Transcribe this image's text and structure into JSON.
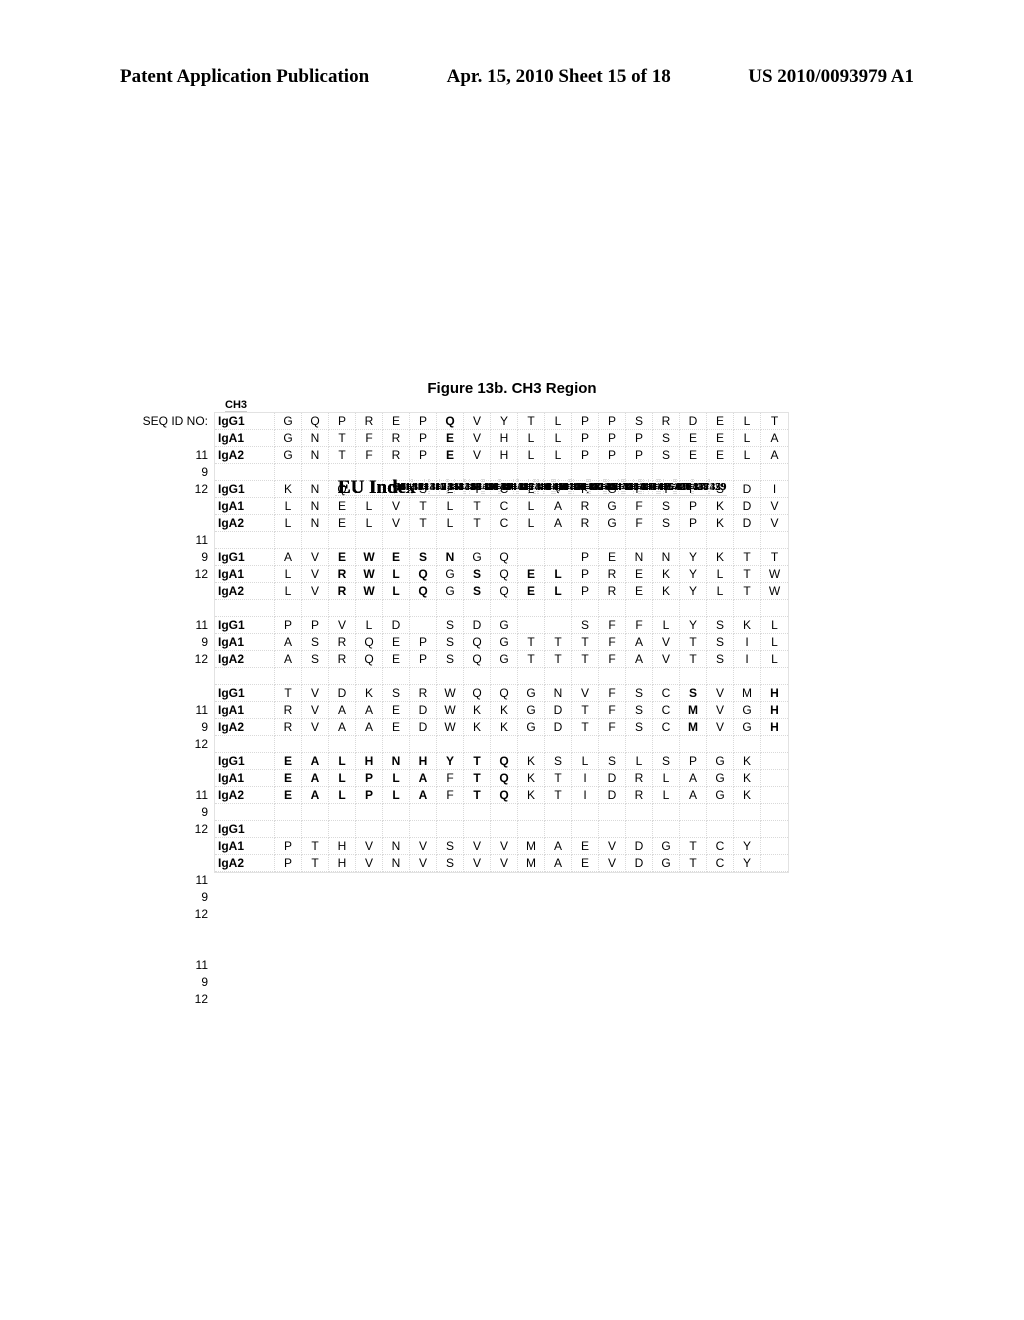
{
  "header": {
    "left": "Patent Application Publication",
    "center": "Apr. 15, 2010  Sheet 15 of 18",
    "right": "US 2010/0093979 A1"
  },
  "figure_title": "Figure 13b.  CH3 Region",
  "seq_label": "SEQ ID NO:",
  "region_label": "CH3",
  "blocks": [
    {
      "seq_ids": [
        "11",
        "9",
        "12"
      ],
      "index_label": "EU Index",
      "indices": [
        "341",
        "342",
        "343",
        "344",
        "345",
        "346",
        "347",
        "348",
        "349",
        "350",
        "351",
        "352",
        "353",
        "354",
        "355",
        "356",
        "357",
        "358",
        "359"
      ],
      "rows": [
        {
          "label": "IgG1",
          "b": false,
          "cells": [
            "G",
            "Q",
            "P",
            "R",
            "E",
            "P",
            "Q",
            "V",
            "Y",
            "T",
            "L",
            "P",
            "P",
            "S",
            "R",
            "D",
            "E",
            "L",
            "T"
          ],
          "bold": [
            0,
            0,
            0,
            0,
            0,
            0,
            1,
            0,
            0,
            0,
            0,
            0,
            0,
            0,
            0,
            0,
            0,
            0,
            0
          ]
        },
        {
          "label": "IgA1",
          "b": false,
          "cells": [
            "G",
            "N",
            "T",
            "F",
            "R",
            "P",
            "E",
            "V",
            "H",
            "L",
            "L",
            "P",
            "P",
            "P",
            "S",
            "E",
            "E",
            "L",
            "A"
          ],
          "bold": [
            0,
            0,
            0,
            0,
            0,
            0,
            1,
            0,
            0,
            0,
            0,
            0,
            0,
            0,
            0,
            0,
            0,
            0,
            0
          ]
        },
        {
          "label": "IgA2",
          "b": false,
          "cells": [
            "G",
            "N",
            "T",
            "F",
            "R",
            "P",
            "E",
            "V",
            "H",
            "L",
            "L",
            "P",
            "P",
            "P",
            "S",
            "E",
            "E",
            "L",
            "A"
          ],
          "bold": [
            0,
            0,
            0,
            0,
            0,
            0,
            1,
            0,
            0,
            0,
            0,
            0,
            0,
            0,
            0,
            0,
            0,
            0,
            0
          ]
        }
      ]
    },
    {
      "seq_ids": [
        "11",
        "9",
        "12"
      ],
      "index_label": "EU Index",
      "indices": [
        "360",
        "361",
        "362",
        "",
        "363",
        "364",
        "365",
        "366",
        "367",
        "368",
        "369",
        "370",
        "371",
        "372",
        "373",
        "374",
        "375",
        "376",
        "377"
      ],
      "rows": [
        {
          "label": "IgG1",
          "b": false,
          "cells": [
            "K",
            "N",
            "Q",
            "",
            "V",
            "S",
            "L",
            "T",
            "C",
            "L",
            "V",
            "K",
            "G",
            "F",
            "Y",
            "P",
            "S",
            "D",
            "I"
          ],
          "bold": [
            0,
            0,
            0,
            0,
            0,
            0,
            0,
            0,
            0,
            0,
            0,
            0,
            0,
            0,
            0,
            0,
            0,
            0,
            0
          ]
        },
        {
          "label": "IgA1",
          "b": false,
          "cells": [
            "L",
            "N",
            "E",
            "L",
            "V",
            "T",
            "L",
            "T",
            "C",
            "L",
            "A",
            "R",
            "G",
            "F",
            "S",
            "P",
            "K",
            "D",
            "V"
          ],
          "bold": [
            0,
            0,
            0,
            0,
            0,
            0,
            0,
            0,
            0,
            0,
            0,
            0,
            0,
            0,
            0,
            0,
            0,
            0,
            0
          ]
        },
        {
          "label": "IgA2",
          "b": false,
          "cells": [
            "L",
            "N",
            "E",
            "L",
            "V",
            "T",
            "L",
            "T",
            "C",
            "L",
            "A",
            "R",
            "G",
            "F",
            "S",
            "P",
            "K",
            "D",
            "V"
          ],
          "bold": [
            0,
            0,
            0,
            0,
            0,
            0,
            0,
            0,
            0,
            0,
            0,
            0,
            0,
            0,
            0,
            0,
            0,
            0,
            0
          ]
        }
      ]
    },
    {
      "seq_ids": [
        "11",
        "9",
        "12"
      ],
      "index_label": "EU Index",
      "indices": [
        "378",
        "379",
        "380",
        "381",
        "382",
        "383",
        "384",
        "385",
        "386",
        "",
        "",
        "387",
        "388",
        "389",
        "390",
        "391",
        "392",
        "393",
        "394"
      ],
      "rows": [
        {
          "label": "IgG1",
          "b": false,
          "cells": [
            "A",
            "V",
            "E",
            "W",
            "E",
            "S",
            "N",
            "G",
            "Q",
            "",
            "",
            "P",
            "E",
            "N",
            "N",
            "Y",
            "K",
            "T",
            "T"
          ],
          "bold": [
            0,
            0,
            1,
            1,
            1,
            1,
            1,
            0,
            0,
            0,
            0,
            0,
            0,
            0,
            0,
            0,
            0,
            0,
            0
          ]
        },
        {
          "label": "IgA1",
          "b": false,
          "cells": [
            "L",
            "V",
            "R",
            "W",
            "L",
            "Q",
            "G",
            "S",
            "Q",
            "E",
            "L",
            "P",
            "R",
            "E",
            "K",
            "Y",
            "L",
            "T",
            "W"
          ],
          "bold": [
            0,
            0,
            1,
            1,
            1,
            1,
            0,
            1,
            0,
            1,
            1,
            0,
            0,
            0,
            0,
            0,
            0,
            0,
            0
          ]
        },
        {
          "label": "IgA2",
          "b": false,
          "cells": [
            "L",
            "V",
            "R",
            "W",
            "L",
            "Q",
            "G",
            "S",
            "Q",
            "E",
            "L",
            "P",
            "R",
            "E",
            "K",
            "Y",
            "L",
            "T",
            "W"
          ],
          "bold": [
            0,
            0,
            1,
            1,
            1,
            1,
            0,
            1,
            0,
            1,
            1,
            0,
            0,
            0,
            0,
            0,
            0,
            0,
            0
          ]
        }
      ]
    },
    {
      "seq_ids": [
        "11",
        "9",
        "12"
      ],
      "index_label": "EU Index",
      "indices": [
        "395",
        "396",
        "397",
        "398",
        "399",
        "",
        "400",
        "401",
        "402",
        "",
        "",
        "403",
        "404",
        "405",
        "406",
        "407",
        "408",
        "409",
        "410"
      ],
      "rows": [
        {
          "label": "IgG1",
          "b": false,
          "cells": [
            "P",
            "P",
            "V",
            "L",
            "D",
            "",
            "S",
            "D",
            "G",
            "",
            "",
            "S",
            "F",
            "F",
            "L",
            "Y",
            "S",
            "K",
            "L"
          ],
          "bold": [
            0,
            0,
            0,
            0,
            0,
            0,
            0,
            0,
            0,
            0,
            0,
            0,
            0,
            0,
            0,
            0,
            0,
            0,
            0
          ]
        },
        {
          "label": "IgA1",
          "b": false,
          "cells": [
            "A",
            "S",
            "R",
            "Q",
            "E",
            "P",
            "S",
            "Q",
            "G",
            "T",
            "T",
            "T",
            "F",
            "A",
            "V",
            "T",
            "S",
            "I",
            "L"
          ],
          "bold": [
            0,
            0,
            0,
            0,
            0,
            0,
            0,
            0,
            0,
            0,
            0,
            0,
            0,
            0,
            0,
            0,
            0,
            0,
            0
          ]
        },
        {
          "label": "IgA2",
          "b": false,
          "cells": [
            "A",
            "S",
            "R",
            "Q",
            "E",
            "P",
            "S",
            "Q",
            "G",
            "T",
            "T",
            "T",
            "F",
            "A",
            "V",
            "T",
            "S",
            "I",
            "L"
          ],
          "bold": [
            0,
            0,
            0,
            0,
            0,
            0,
            0,
            0,
            0,
            0,
            0,
            0,
            0,
            0,
            0,
            0,
            0,
            0,
            0
          ]
        }
      ]
    },
    {
      "seq_ids": [
        "11",
        "9",
        "12"
      ],
      "index_label": "EU Index",
      "indices": [
        "411",
        "412",
        "413",
        "414",
        "415",
        "416",
        "417",
        "418",
        "419",
        "420",
        "421",
        "422",
        "423",
        "424",
        "425",
        "426",
        "427",
        "428",
        "429"
      ],
      "rows": [
        {
          "label": "IgG1",
          "b": false,
          "cells": [
            "T",
            "V",
            "D",
            "K",
            "S",
            "R",
            "W",
            "Q",
            "Q",
            "G",
            "N",
            "V",
            "F",
            "S",
            "C",
            "S",
            "V",
            "M",
            "H"
          ],
          "bold": [
            0,
            0,
            0,
            0,
            0,
            0,
            0,
            0,
            0,
            0,
            0,
            0,
            0,
            0,
            0,
            1,
            0,
            0,
            1
          ]
        },
        {
          "label": "IgA1",
          "b": false,
          "cells": [
            "R",
            "V",
            "A",
            "A",
            "E",
            "D",
            "W",
            "K",
            "K",
            "G",
            "D",
            "T",
            "F",
            "S",
            "C",
            "M",
            "V",
            "G",
            "H"
          ],
          "bold": [
            0,
            0,
            0,
            0,
            0,
            0,
            0,
            0,
            0,
            0,
            0,
            0,
            0,
            0,
            0,
            1,
            0,
            0,
            1
          ]
        },
        {
          "label": "IgA2",
          "b": false,
          "cells": [
            "R",
            "V",
            "A",
            "A",
            "E",
            "D",
            "W",
            "K",
            "K",
            "G",
            "D",
            "T",
            "F",
            "S",
            "C",
            "M",
            "V",
            "G",
            "H"
          ],
          "bold": [
            0,
            0,
            0,
            0,
            0,
            0,
            0,
            0,
            0,
            0,
            0,
            0,
            0,
            0,
            0,
            1,
            0,
            0,
            1
          ]
        }
      ]
    },
    {
      "seq_ids": [
        "11",
        "9",
        "12"
      ],
      "index_label": "EU Index",
      "indices": [
        "430",
        "431",
        "432",
        "433",
        "434",
        "435",
        "436",
        "437",
        "438",
        "439",
        "440",
        "441",
        "442",
        "443",
        "444",
        "445",
        "446",
        "447",
        ""
      ],
      "rows": [
        {
          "label": "IgG1",
          "b": false,
          "cells": [
            "E",
            "A",
            "L",
            "H",
            "N",
            "H",
            "Y",
            "T",
            "Q",
            "K",
            "S",
            "L",
            "S",
            "L",
            "S",
            "P",
            "G",
            "K",
            ""
          ],
          "bold": [
            1,
            1,
            1,
            1,
            1,
            1,
            1,
            1,
            1,
            0,
            0,
            0,
            0,
            0,
            0,
            0,
            0,
            0,
            0
          ]
        },
        {
          "label": "IgA1",
          "b": false,
          "cells": [
            "E",
            "A",
            "L",
            "P",
            "L",
            "A",
            "F",
            "T",
            "Q",
            "K",
            "T",
            "I",
            "D",
            "R",
            "L",
            "A",
            "G",
            "K",
            ""
          ],
          "bold": [
            1,
            1,
            1,
            1,
            1,
            1,
            0,
            1,
            1,
            0,
            0,
            0,
            0,
            0,
            0,
            0,
            0,
            0,
            0
          ]
        },
        {
          "label": "IgA2",
          "b": false,
          "cells": [
            "E",
            "A",
            "L",
            "P",
            "L",
            "A",
            "F",
            "T",
            "Q",
            "K",
            "T",
            "I",
            "D",
            "R",
            "L",
            "A",
            "G",
            "K",
            ""
          ],
          "bold": [
            1,
            1,
            1,
            1,
            1,
            1,
            0,
            1,
            1,
            0,
            0,
            0,
            0,
            0,
            0,
            0,
            0,
            0,
            0
          ]
        }
      ]
    },
    {
      "seq_ids": [
        "11",
        "9",
        "12"
      ],
      "index_label": "EU Index",
      "indices": [
        "",
        "",
        "",
        "",
        "",
        "",
        "",
        "",
        "",
        "",
        "",
        "",
        "",
        "",
        "",
        "",
        "",
        "",
        ""
      ],
      "rows": [
        {
          "label": "IgG1",
          "b": false,
          "cells": [
            "",
            "",
            "",
            "",
            "",
            "",
            "",
            "",
            "",
            "",
            "",
            "",
            "",
            "",
            "",
            "",
            "",
            "",
            ""
          ],
          "bold": [
            0,
            0,
            0,
            0,
            0,
            0,
            0,
            0,
            0,
            0,
            0,
            0,
            0,
            0,
            0,
            0,
            0,
            0,
            0
          ]
        },
        {
          "label": "IgA1",
          "b": false,
          "cells": [
            "P",
            "T",
            "H",
            "V",
            "N",
            "V",
            "S",
            "V",
            "V",
            "M",
            "A",
            "E",
            "V",
            "D",
            "G",
            "T",
            "C",
            "Y",
            ""
          ],
          "bold": [
            0,
            0,
            0,
            0,
            0,
            0,
            0,
            0,
            0,
            0,
            0,
            0,
            0,
            0,
            0,
            0,
            0,
            0,
            0
          ]
        },
        {
          "label": "IgA2",
          "b": false,
          "cells": [
            "P",
            "T",
            "H",
            "V",
            "N",
            "V",
            "S",
            "V",
            "V",
            "M",
            "A",
            "E",
            "V",
            "D",
            "G",
            "T",
            "C",
            "Y",
            ""
          ],
          "bold": [
            0,
            0,
            0,
            0,
            0,
            0,
            0,
            0,
            0,
            0,
            0,
            0,
            0,
            0,
            0,
            0,
            0,
            0,
            0
          ]
        }
      ]
    }
  ]
}
